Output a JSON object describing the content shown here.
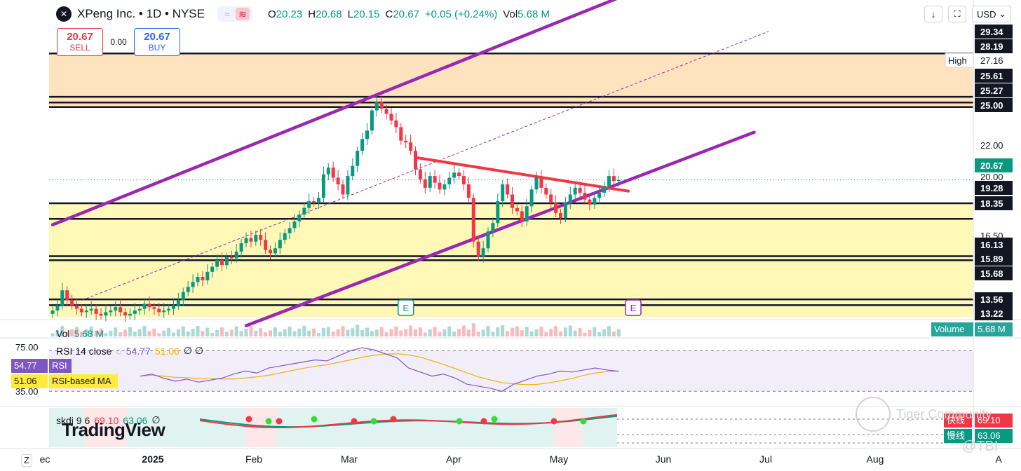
{
  "header": {
    "symbol": "XPeng Inc. • 1D • NYSE",
    "o_label": "O",
    "o": "20.23",
    "h_label": "H",
    "h": "20.68",
    "l_label": "L",
    "l": "20.15",
    "c_label": "C",
    "c": "20.67",
    "change": "+0.05 (+0.24%)",
    "vol_label": "Vol",
    "vol": "5.68 M",
    "currency": "USD"
  },
  "trade": {
    "sell_price": "20.67",
    "sell_label": "SELL",
    "spread": "0.00",
    "buy_price": "20.67",
    "buy_label": "BUY"
  },
  "colors": {
    "up": "#089981",
    "down": "#f23645",
    "channel": "#9c27b0",
    "trendline": "#f23645",
    "rsi": "#7e57c2",
    "rsi_ma": "#f0b100",
    "zone_orange": "#ffd8a8",
    "zone_yellow": "#fff59d"
  },
  "chart_data": {
    "type": "candlestick",
    "symbol": "XPeng Inc.",
    "interval": "1D",
    "x_ticks": [
      "ec",
      "2025",
      "Feb",
      "Mar",
      "Apr",
      "May",
      "Jun",
      "Jul",
      "Aug",
      "A"
    ],
    "price_labels": [
      "29.34",
      "28.19",
      "27.16",
      "25.61",
      "25.27",
      "25.00",
      "22.00",
      "20.67",
      "20.00",
      "19.28",
      "18.35",
      "16.50",
      "16.13",
      "15.89",
      "15.68",
      "13.56",
      "13.22"
    ],
    "high_label": "High",
    "high_value": "27.16",
    "last_price": "20.67",
    "horizontal_levels": [
      28.19,
      25.61,
      25.27,
      25.0,
      19.28,
      18.35,
      16.13,
      15.89,
      13.56,
      13.22
    ],
    "zones": [
      {
        "from": 25.0,
        "to": 28.19,
        "color": "orange"
      },
      {
        "from": 12.5,
        "to": 19.28,
        "color": "yellow"
      }
    ],
    "closes": [
      12.9,
      13.2,
      14.1,
      13.5,
      13.2,
      13.0,
      12.8,
      12.9,
      13.0,
      12.7,
      12.6,
      12.8,
      12.9,
      13.1,
      12.8,
      12.6,
      12.7,
      12.9,
      13.0,
      13.3,
      13.1,
      13.0,
      12.8,
      12.9,
      13.0,
      13.2,
      13.5,
      14.0,
      14.3,
      14.6,
      14.9,
      14.7,
      15.2,
      15.5,
      15.9,
      15.6,
      16.1,
      16.0,
      16.4,
      16.9,
      17.2,
      17.0,
      17.4,
      17.1,
      16.5,
      16.3,
      16.6,
      17.1,
      17.5,
      17.8,
      18.2,
      18.6,
      19.0,
      19.4,
      19.3,
      19.6,
      21.0,
      21.4,
      20.8,
      20.4,
      19.8,
      20.9,
      21.5,
      22.4,
      23.1,
      23.6,
      24.8,
      25.3,
      24.9,
      24.6,
      24.2,
      23.8,
      23.0,
      22.9,
      22.4,
      21.3,
      20.7,
      20.2,
      20.9,
      20.5,
      20.1,
      20.4,
      20.8,
      21.1,
      20.9,
      20.4,
      19.6,
      17.0,
      16.1,
      16.6,
      17.6,
      18.1,
      19.4,
      20.4,
      19.8,
      19.0,
      18.8,
      18.2,
      19.1,
      20.1,
      20.8,
      20.2,
      19.8,
      19.3,
      18.7,
      18.4,
      19.3,
      19.8,
      20.2,
      19.9,
      19.5,
      19.2,
      19.6,
      19.9,
      20.3,
      20.9,
      20.6,
      20.67
    ],
    "channel_upper": [
      [
        0,
        18.0
      ],
      [
        117,
        31.5
      ]
    ],
    "channel_lower": [
      [
        40,
        12.0
      ],
      [
        145,
        23.5
      ]
    ],
    "channel_mid_dashed": [
      [
        6,
        13.5
      ],
      [
        148,
        29.5
      ]
    ],
    "trendline": [
      [
        75,
        22.0
      ],
      [
        119,
        20.0
      ]
    ],
    "events": [
      "E",
      "E"
    ],
    "volume_label": "Volume",
    "volume_value": "5.68 M",
    "rsi": {
      "title": "RSI 14 close",
      "value": "54.77",
      "ma_value": "51.06",
      "extra": "∅ ∅",
      "badge_rsi_label": "RSI",
      "badge_ma_label": "RSI-based MA",
      "levels": [
        "75.00",
        "35.00"
      ],
      "values": [
        50,
        52,
        48,
        45,
        47,
        44,
        46,
        48,
        52,
        55,
        53,
        58,
        60,
        62,
        64,
        66,
        65,
        70,
        75,
        78,
        76,
        72,
        68,
        58,
        54,
        50,
        52,
        48,
        42,
        40,
        38,
        35,
        42,
        46,
        50,
        52,
        55,
        54,
        56,
        58,
        56,
        54.77
      ]
    },
    "skdj": {
      "title": "skdj 9 6",
      "k": "69.10",
      "d": "63.06",
      "extra": "∅",
      "k_label": "快线",
      "d_label": "慢线"
    }
  },
  "watermarks": {
    "tradingview": "TradingView",
    "tiger": "Tiger Community",
    "tbi": "@TBI"
  }
}
